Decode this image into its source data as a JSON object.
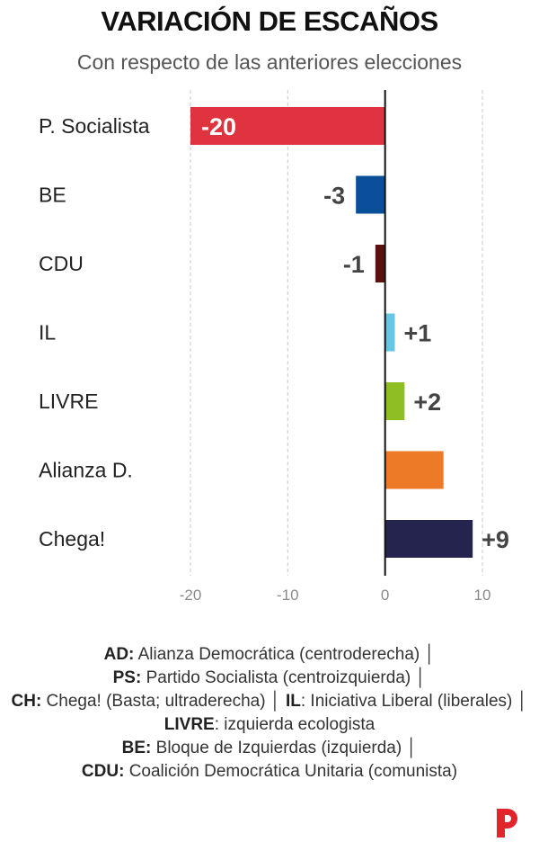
{
  "chart_data": {
    "type": "bar",
    "orientation": "horizontal",
    "title": "VARIACIÓN DE ESCAÑOS",
    "subtitle": "Con respecto de las anteriores elecciones",
    "categories": [
      "P. Socialista",
      "BE",
      "CDU",
      "IL",
      "LIVRE",
      "Alianza D.",
      "Chega!"
    ],
    "values": [
      -20,
      -3,
      -1,
      1,
      2,
      6,
      9
    ],
    "value_labels": [
      "-20",
      "-3",
      "-1",
      "+1",
      "+2",
      "",
      "+9"
    ],
    "colors": [
      "#df343f",
      "#0a4f9a",
      "#5b120f",
      "#67c5e6",
      "#8ebe24",
      "#ec7a27",
      "#25244f"
    ],
    "xlim": [
      -20,
      10
    ],
    "x_ticks": [
      -20,
      -10,
      0,
      10
    ],
    "x_tick_labels": [
      "-20",
      "-10",
      "0",
      "10"
    ],
    "grid": true
  },
  "footnote": {
    "items": [
      {
        "abbr": "AD:",
        "text": " Alianza Democrática (centroderecha) │"
      },
      {
        "abbr": "PS:",
        "text": " Partido Socialista (centroizquierda) │"
      },
      {
        "abbr": "CH:",
        "text": " Chega! (Basta; ultraderecha) │ "
      },
      {
        "abbr": "IL",
        "text": ": Iniciativa Liberal (liberales) │ "
      },
      {
        "abbr": "LIVRE",
        "text": ": izquierda ecologista"
      },
      {
        "abbr": "BE:",
        "text": " Bloque de Izquierdas (izquierda) │"
      },
      {
        "abbr": "CDU:",
        "text": " Coalición Democrática Unitaria (comunista)"
      }
    ]
  },
  "logo": {
    "letter": "P",
    "color": "#e3242b"
  }
}
